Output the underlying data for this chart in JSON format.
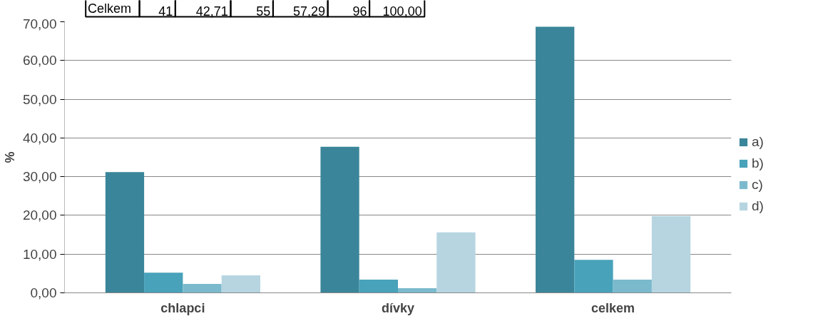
{
  "chart_data": {
    "type": "bar",
    "ylabel": "%",
    "categories": [
      "chlapci",
      "dívky",
      "celkem"
    ],
    "series": [
      {
        "name": "a)",
        "color": "#3a8599",
        "values": [
          31.2,
          37.7,
          68.7
        ]
      },
      {
        "name": "b)",
        "color": "#48a2ba",
        "values": [
          5.2,
          3.4,
          8.5
        ]
      },
      {
        "name": "c)",
        "color": "#7bbacd",
        "values": [
          2.3,
          1.2,
          3.4
        ]
      },
      {
        "name": "d)",
        "color": "#b6d5e0",
        "values": [
          4.5,
          15.6,
          19.8
        ]
      }
    ],
    "ylim": [
      0,
      70
    ],
    "yticks": [
      {
        "value": 0,
        "label": "0,00"
      },
      {
        "value": 10,
        "label": "10,00"
      },
      {
        "value": 20,
        "label": "20,00"
      },
      {
        "value": 30,
        "label": "30,00"
      },
      {
        "value": 40,
        "label": "40,00"
      },
      {
        "value": 50,
        "label": "50,00"
      },
      {
        "value": 60,
        "label": "60,00"
      },
      {
        "value": 70,
        "label": "70,00"
      }
    ],
    "grid": "y",
    "legend": "right",
    "annotations": [
      "Celkem",
      "41",
      "42,71",
      "55",
      "57,29",
      "96",
      "100,00"
    ]
  }
}
